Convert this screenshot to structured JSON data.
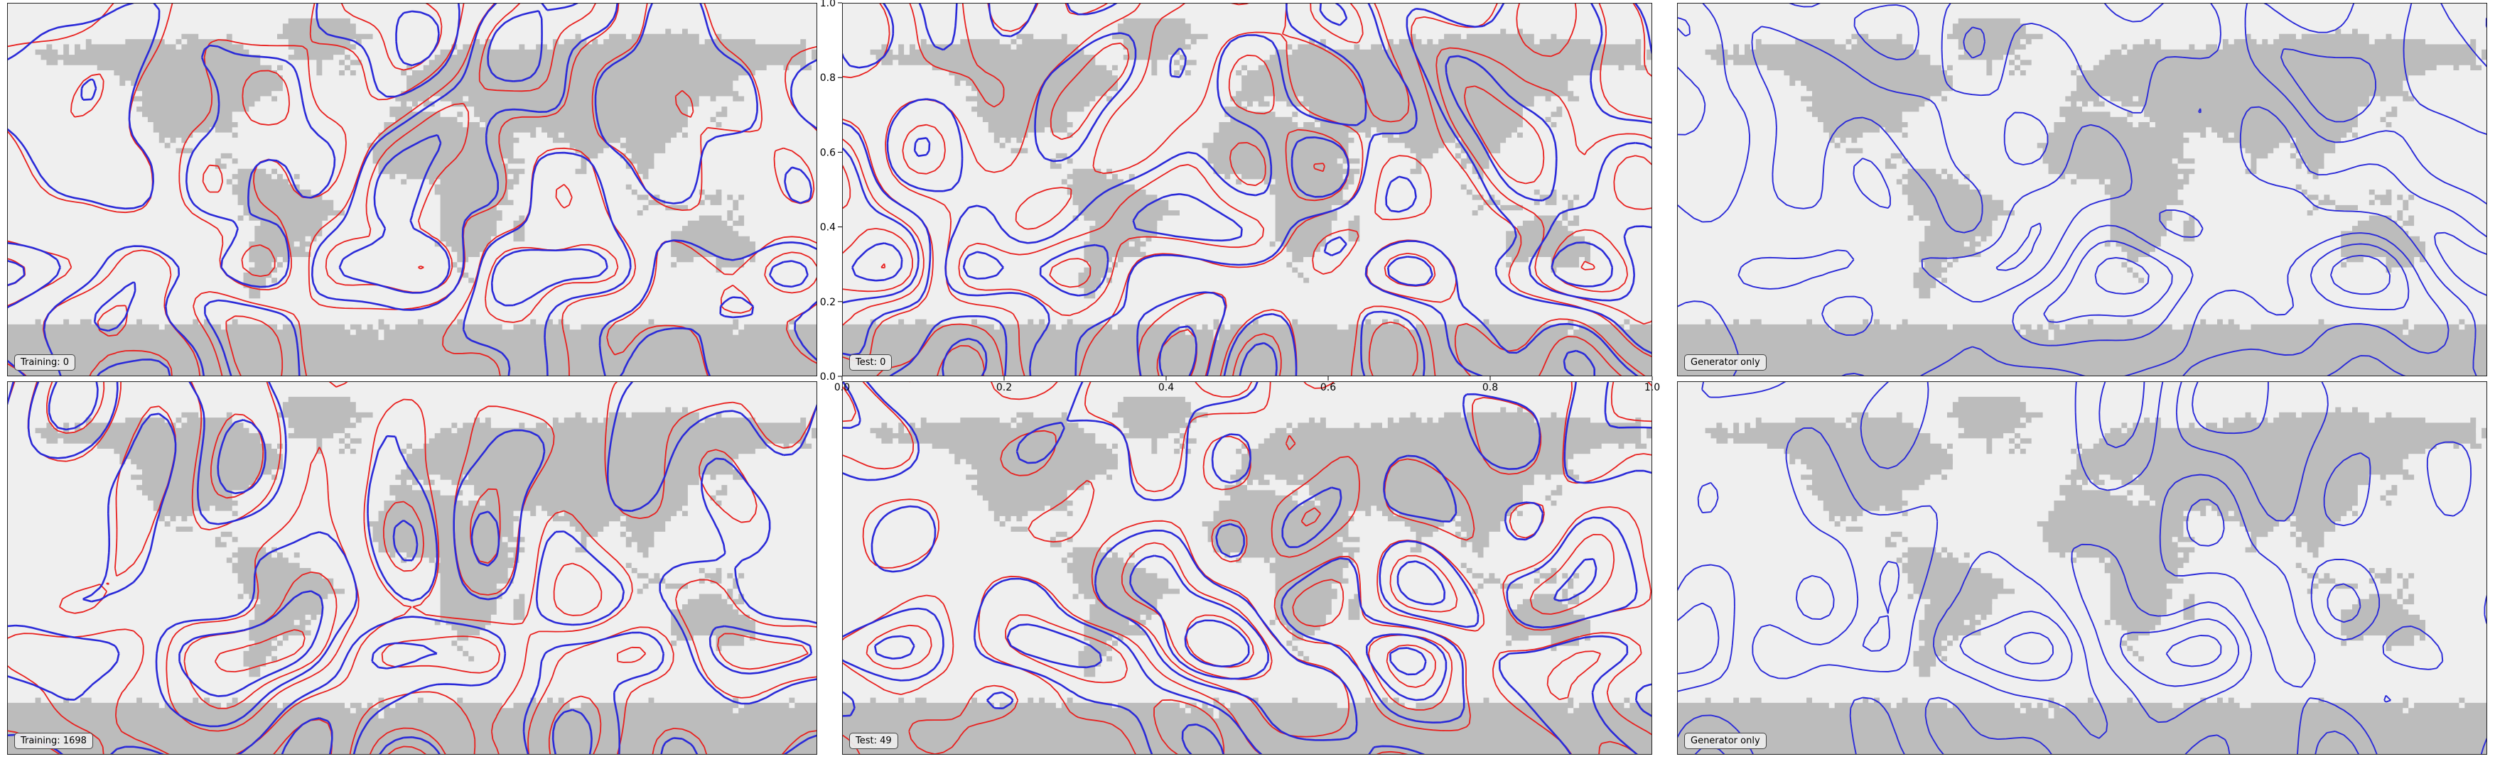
{
  "chart_data": [
    {
      "type": "contour-map",
      "row": 0,
      "col": 0,
      "label": "Training: 0",
      "series": [
        {
          "color": "#e8201e"
        },
        {
          "color": "#2a2ad8"
        }
      ]
    },
    {
      "type": "contour-map",
      "row": 0,
      "col": 1,
      "label": "Test: 0",
      "series": [
        {
          "color": "#e8201e"
        },
        {
          "color": "#2a2ad8"
        }
      ],
      "xlim": [
        0,
        1
      ],
      "ylim": [
        0,
        1
      ],
      "xticks": [
        "0.0",
        "0.2",
        "0.4",
        "0.6",
        "0.8",
        "1.0"
      ],
      "yticks": [
        "0.0",
        "0.2",
        "0.4",
        "0.6",
        "0.8",
        "1.0"
      ]
    },
    {
      "type": "contour-map",
      "row": 0,
      "col": 2,
      "label": "Generator only",
      "series": [
        {
          "color": "#2a2ad8"
        }
      ]
    },
    {
      "type": "contour-map",
      "row": 1,
      "col": 0,
      "label": "Training: 1698",
      "series": [
        {
          "color": "#e8201e"
        },
        {
          "color": "#2a2ad8"
        }
      ]
    },
    {
      "type": "contour-map",
      "row": 1,
      "col": 1,
      "label": "Test: 49",
      "series": [
        {
          "color": "#e8201e"
        },
        {
          "color": "#2a2ad8"
        }
      ]
    },
    {
      "type": "contour-map",
      "row": 1,
      "col": 2,
      "label": "Generator only",
      "series": [
        {
          "color": "#2a2ad8"
        }
      ]
    }
  ],
  "colors": {
    "ocean": "#efefef",
    "land": "#bcbcbc",
    "truth": "#e8201e",
    "generated": "#2a2ad8"
  }
}
